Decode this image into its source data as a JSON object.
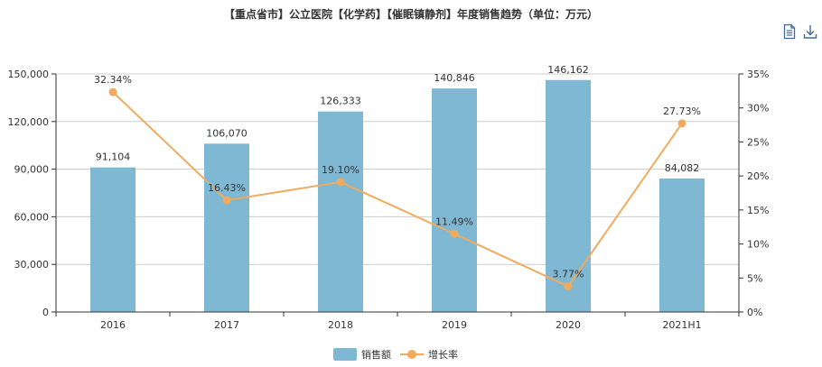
{
  "title": "【重点省市】公立医院【化学药】【催眠镇静剂】年度销售趋势（单位：万元）",
  "toolbar": {
    "data_view_icon": "document-icon",
    "download_icon": "download-icon"
  },
  "colors": {
    "bar": "#7fb8d3",
    "line": "#f0ab5e",
    "axis": "#333333",
    "grid": "#cccccc"
  },
  "chart_data": {
    "type": "bar",
    "title": "【重点省市】公立医院【化学药】【催眠镇静剂】年度销售趋势（单位：万元）",
    "categories": [
      "2016",
      "2017",
      "2018",
      "2019",
      "2020",
      "2021H1"
    ],
    "series": [
      {
        "name": "销售额",
        "type": "bar",
        "axis": "left",
        "values": [
          91104,
          106070,
          126333,
          140846,
          146162,
          84082
        ],
        "labels": [
          "91,104",
          "106,070",
          "126,333",
          "140,846",
          "146,162",
          "84,082"
        ]
      },
      {
        "name": "增长率",
        "type": "line",
        "axis": "right",
        "values": [
          32.34,
          16.43,
          19.1,
          11.49,
          3.77,
          27.73
        ],
        "labels": [
          "32.34%",
          "16.43%",
          "19.10%",
          "11.49%",
          "3.77%",
          "27.73%"
        ]
      }
    ],
    "y_left": {
      "min": 0,
      "max": 150000,
      "ticks": [
        0,
        30000,
        60000,
        90000,
        120000,
        150000
      ],
      "tick_labels": [
        "0",
        "30,000",
        "60,000",
        "90,000",
        "120,000",
        "150,000"
      ]
    },
    "y_right": {
      "min": 0,
      "max": 35,
      "ticks": [
        0,
        5,
        10,
        15,
        20,
        25,
        30,
        35
      ],
      "tick_labels": [
        "0%",
        "5%",
        "10%",
        "15%",
        "20%",
        "25%",
        "30%",
        "35%"
      ]
    },
    "grid": true,
    "legend_position": "bottom-center",
    "legend": [
      "销售额",
      "增长率"
    ]
  }
}
